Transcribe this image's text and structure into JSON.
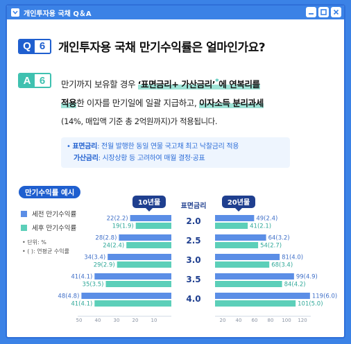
{
  "window": {
    "title": "개인투자용 국채 Q＆A",
    "accent": "#3b82e6"
  },
  "question": {
    "badge_letter": "Q",
    "badge_number": "6",
    "text": "개인투자용 국채 만기수익률은 얼마인가요?"
  },
  "answer": {
    "badge_letter": "A",
    "badge_number": "6",
    "line1_pre": "만기까지 보유할 경우 ",
    "line1_hl": "‘표면금리+ 가산금리’",
    "line1_star": "*",
    "line1_hl2": "에 연복리를",
    "line2_hl": "적용",
    "line2_mid": "한 이자를 만기일에 일괄 지급하고, ",
    "line2_hl2": "이자소득 분리과세",
    "line3": "(14%, 매입액 기준 총 2억원까지)가 적용됩니다."
  },
  "note": {
    "row1_label": "표면금리",
    "row1_text": ": 전월 발행한 동일 연물 국고채 최고 낙찰금리 적용",
    "row2_label": "가산금리",
    "row2_text": ": 시장상황 등 고려하여 매월 결정·공표"
  },
  "chart_tag": "만기수익률 예시",
  "legend": {
    "pre_tax": "세전 만기수익률",
    "post_tax": "세후 만기수익률",
    "unit": "단위: %",
    "paren": "(    ): 연평균 수익률"
  },
  "chart_data": {
    "type": "bar",
    "center_label": "표면금리",
    "categories": [
      "2.0",
      "2.5",
      "3.0",
      "3.5",
      "4.0"
    ],
    "colors": {
      "pre_tax": "#5b8ee6",
      "post_tax": "#5ccfb9",
      "tab": "#1f3f8f"
    },
    "left": {
      "title": "10년물",
      "xlim": [
        0,
        50
      ],
      "ticks": [
        "50",
        "40",
        "30",
        "20",
        "10"
      ],
      "pre_tax": [
        22,
        28,
        34,
        41,
        48
      ],
      "pre_tax_labels": [
        "22(2.2)",
        "28(2.8)",
        "34(3.4)",
        "41(4.1)",
        "48(4.8)"
      ],
      "post_tax": [
        19,
        24,
        29,
        35,
        41
      ],
      "post_tax_labels": [
        "19(1.9)",
        "24(2.4)",
        "29(2.9)",
        "35(3.5)",
        "41(4.1)"
      ]
    },
    "right": {
      "title": "20년물",
      "xlim": [
        0,
        120
      ],
      "ticks": [
        "20",
        "40",
        "60",
        "80",
        "100",
        "120"
      ],
      "pre_tax": [
        49,
        64,
        81,
        99,
        119
      ],
      "pre_tax_labels": [
        "49(2.4)",
        "64(3.2)",
        "81(4.0)",
        "99(4.9)",
        "119(6.0)"
      ],
      "post_tax": [
        41,
        54,
        68,
        84,
        101
      ],
      "post_tax_labels": [
        "41(2.1)",
        "54(2.7)",
        "68(3.4)",
        "84(4.2)",
        "101(5.0)"
      ]
    }
  }
}
